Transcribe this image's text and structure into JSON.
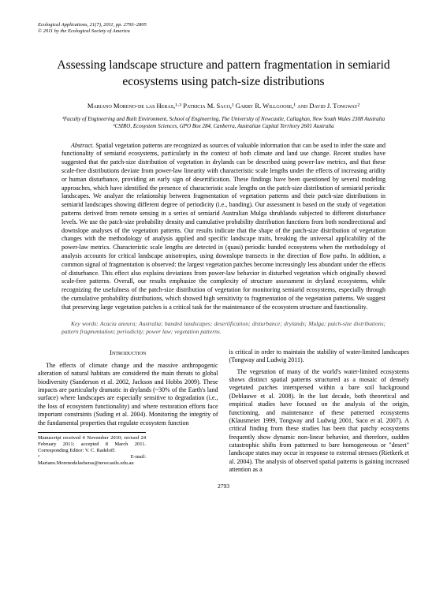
{
  "header": {
    "line1": "Ecological Applications, 21(7), 2011, pp. 2793–2805",
    "line2": "© 2011 by the Ecological Society of America"
  },
  "title": "Assessing landscape structure and pattern fragmentation in semiarid ecosystems using patch-size distributions",
  "authors_html": "Mariano Moreno-de las Heras,¹·³ Patricia M. Saco,¹ Garry R. Willgoose,¹ and David J. Tongway²",
  "affiliations": {
    "a1": "¹Faculty of Engineering and Built Environment, School of Engineering, The University of Newcastle, Callaghan, New South Wales 2308 Australia",
    "a2": "²CSIRO, Ecosystem Sciences, GPO Box 284, Canberra, Australian Capital Territory 2601 Australia"
  },
  "abstract_label": "Abstract.",
  "abstract_text": "Spatial vegetation patterns are recognized as sources of valuable information that can be used to infer the state and functionality of semiarid ecosystems, particularly in the context of both climate and land use change. Recent studies have suggested that the patch-size distribution of vegetation in drylands can be described using power-law metrics, and that these scale-free distributions deviate from power-law linearity with characteristic scale lengths under the effects of increasing aridity or human disturbance, providing an early sign of desertification. These findings have been questioned by several modeling approaches, which have identified the presence of characteristic scale lengths on the patch-size distribution of semiarid periodic landscapes. We analyze the relationship between fragmentation of vegetation patterns and their patch-size distributions in semiarid landscapes showing different degree of periodicity (i.e., banding). Our assessment is based on the study of vegetation patterns derived from remote sensing in a series of semiarid Australian Mulga shrublands subjected to different disturbance levels. We use the patch-size probability density and cumulative probability distribution functions from both nondirectional and downslope analyses of the vegetation patterns. Our results indicate that the shape of the patch-size distribution of vegetation changes with the methodology of analysis applied and specific landscape traits, breaking the universal applicability of the power-law metrics. Characteristic scale lengths are detected in (quasi) periodic banded ecosystems when the methodology of analysis accounts for critical landscape anisotropies, using downslope transects in the direction of flow paths. In addition, a common signal of fragmentation is observed: the largest vegetation patches become increasingly less abundant under the effects of disturbance. This effect also explains deviations from power-law behavior in disturbed vegetation which originally showed scale-free patterns. Overall, our results emphasize the complexity of structure assessment in dryland ecosystems, while recognizing the usefulness of the patch-size distribution of vegetation for monitoring semiarid ecosystems, especially through the cumulative probability distributions, which showed high sensitivity to fragmentation of the vegetation patterns. We suggest that preserving large vegetation patches is a critical task for the maintenance of the ecosystem structure and functionality.",
  "keywords_label": "Key words:",
  "keywords_text": "Acacia aneura; Australia; banded landscapes; desertification; disturbance; drylands; Mulga; patch-size distributions; pattern fragmentation; periodicity; power law; vegetation patterns.",
  "intro_heading": "Introduction",
  "col1": {
    "p1": "The effects of climate change and the massive anthropogenic alteration of natural habitats are considered the main threats to global biodiversity (Sanderson et al. 2002, Jackson and Hobbs 2009). These impacts are particularly dramatic in drylands (~30% of the Earth's land surface) where landscapes are especially sensitive to degradation (i.e., the loss of ecosystem functionality) and where restoration efforts face important constraints (Suding et al. 2004). Monitoring the integrity of the fundamental properties that regulate ecosystem function"
  },
  "footnote": {
    "f1": "Manuscript received 4 November 2010; revised 24 February 2011; accepted 8 March 2011. Corresponding Editor: V. C. Radeloff.",
    "f2": "³ E-mail: Mariano.Morenodelasheras@newcastle.edu.au"
  },
  "col2": {
    "p1": "is critical in order to maintain the stability of water-limited landscapes (Tongway and Ludwig 2011).",
    "p2": "The vegetation of many of the world's water-limited ecosystems shows distinct spatial patterns structured as a mosaic of densely vegetated patches interspersed within a bare soil background (Deblauwe et al. 2008). In the last decade, both theoretical and empirical studies have focused on the analysis of the origin, functioning, and maintenance of these patterned ecosystems (Klausmeier 1999, Tongway and Ludwig 2001, Saco et al. 2007). A critical finding from these studies has been that patchy ecosystems frequently show dynamic non-linear behavior, and therefore, sudden catastrophic shifts from patterned to bare homogeneous or \"desert\" landscape states may occur in response to external stresses (Rietkerk et al. 2004). The analysis of observed spatial patterns is gaining increased attention as a"
  },
  "page_number": "2793"
}
